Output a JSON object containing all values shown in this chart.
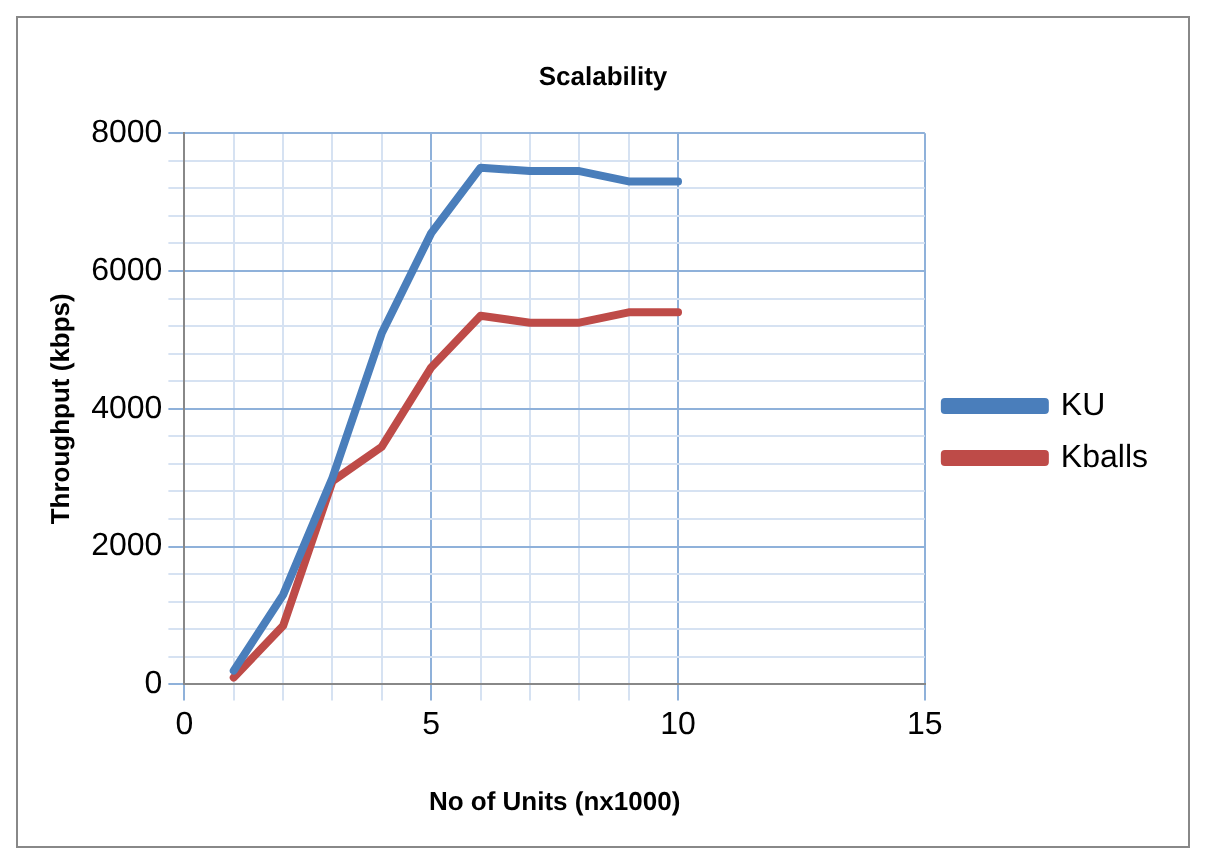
{
  "chart_data": {
    "type": "line",
    "title": "Scalability",
    "xlabel": "No of Units (nx1000)",
    "ylabel": "Throughput (kbps)",
    "x": [
      1,
      2,
      3,
      4,
      5,
      6,
      7,
      8,
      9,
      10
    ],
    "series": [
      {
        "name": "KU",
        "color": "#4a7ebb",
        "values": [
          200,
          1300,
          3000,
          5100,
          6550,
          7500,
          7450,
          7450,
          7300,
          7300
        ]
      },
      {
        "name": "Kballs",
        "color": "#be4b48",
        "values": [
          100,
          850,
          2950,
          3450,
          4600,
          5350,
          5250,
          5250,
          5400,
          5400
        ]
      }
    ],
    "xlim": [
      0,
      15
    ],
    "xticks": [
      0,
      {
        "value": 1,
        "label": null
      },
      {
        "value": 2,
        "label": null
      },
      {
        "value": 3,
        "label": null
      },
      {
        "value": 4,
        "label": null
      },
      5,
      {
        "value": 6,
        "label": null
      },
      {
        "value": 7,
        "label": null
      },
      {
        "value": 8,
        "label": null
      },
      {
        "value": 9,
        "label": null
      },
      10,
      15
    ],
    "ylim": [
      0,
      8000
    ],
    "yticks": [
      0,
      {
        "value": 400,
        "label": null
      },
      {
        "value": 800,
        "label": null
      },
      {
        "value": 1200,
        "label": null
      },
      {
        "value": 1600,
        "label": null
      },
      2000,
      {
        "value": 2400,
        "label": null
      },
      {
        "value": 2800,
        "label": null
      },
      {
        "value": 3200,
        "label": null
      },
      {
        "value": 3600,
        "label": null
      },
      4000,
      {
        "value": 4400,
        "label": null
      },
      {
        "value": 4800,
        "label": null
      },
      {
        "value": 5200,
        "label": null
      },
      {
        "value": 5600,
        "label": null
      },
      6000,
      {
        "value": 6400,
        "label": null
      },
      {
        "value": 6800,
        "label": null
      },
      {
        "value": 7200,
        "label": null
      },
      {
        "value": 7600,
        "label": null
      },
      8000
    ],
    "grid": true,
    "legend": "right",
    "marker": "none",
    "line_style": "solid"
  }
}
